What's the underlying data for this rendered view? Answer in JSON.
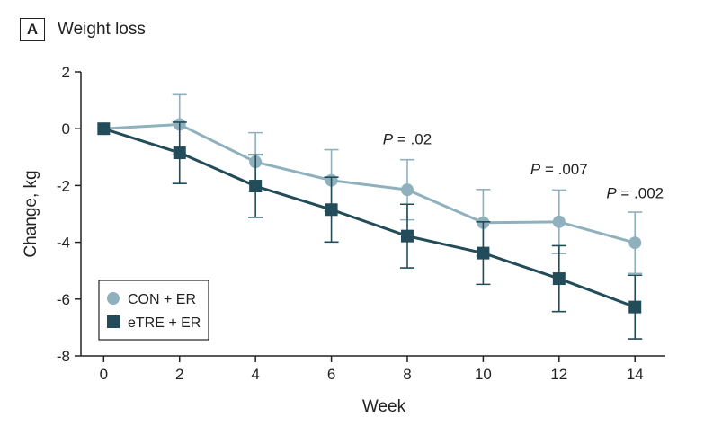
{
  "panel": {
    "letter": "A",
    "title": "Weight loss"
  },
  "chart_data": {
    "type": "line",
    "title": "Weight loss",
    "xlabel": "Week",
    "ylabel": "Change, kg",
    "x": [
      0,
      2,
      4,
      6,
      8,
      10,
      12,
      14
    ],
    "xticks": [
      0,
      2,
      4,
      6,
      8,
      10,
      12,
      14
    ],
    "yticks": [
      2,
      0,
      -2,
      -4,
      -6,
      -8
    ],
    "ylim": [
      -8,
      2
    ],
    "xlim": [
      -0.6,
      14.8
    ],
    "grid": false,
    "legend_position": "bottom-left",
    "series": [
      {
        "name": "CON + ER",
        "color": "#8FB1BE",
        "marker": "circle",
        "values": [
          0,
          0.15,
          -1.17,
          -1.82,
          -2.15,
          -3.31,
          -3.28,
          -4.02
        ],
        "error": [
          0,
          1.05,
          1.03,
          1.08,
          1.06,
          1.17,
          1.12,
          1.08
        ]
      },
      {
        "name": "eTRE + ER",
        "color": "#224C59",
        "marker": "square",
        "values": [
          0,
          -0.85,
          -2.02,
          -2.85,
          -3.78,
          -4.38,
          -5.28,
          -6.28
        ],
        "error": [
          0,
          1.08,
          1.1,
          1.14,
          1.12,
          1.1,
          1.16,
          1.12
        ]
      }
    ],
    "annotations": [
      {
        "x": 8,
        "y": -0.55,
        "italic": "P",
        "text": " = .02"
      },
      {
        "x": 12,
        "y": -1.6,
        "italic": "P",
        "text": " = .007"
      },
      {
        "x": 14,
        "y": -2.45,
        "italic": "P",
        "text": " = .002"
      }
    ]
  }
}
